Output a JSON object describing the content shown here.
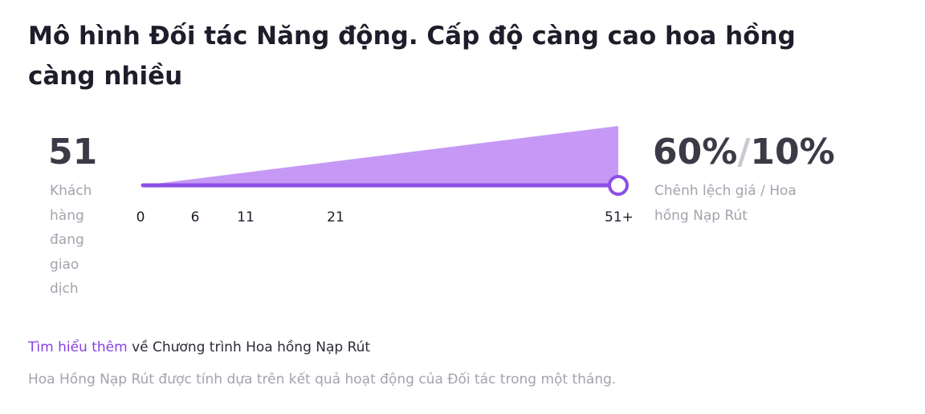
{
  "title": "Mô hình Đối tác Năng động. Cấp độ càng cao hoa hồng càng nhiều",
  "left": {
    "value": "51",
    "label": "Khách hàng đang giao dịch"
  },
  "scale": {
    "ticks": [
      "0",
      "6",
      "11",
      "21",
      "51+"
    ]
  },
  "right": {
    "primary": "60%",
    "separator": "/",
    "secondary": "10%",
    "label": "Chênh lệch giá / Hoa hồng Nạp Rút"
  },
  "footer": {
    "link": "Tìm hiểu thêm",
    "link_suffix": " về Chương trình Hoa hồng Nạp Rút",
    "note": "Hoa Hồng Nạp Rút được tính dựa trên kết quả hoạt động của Đối tác trong một tháng."
  }
}
